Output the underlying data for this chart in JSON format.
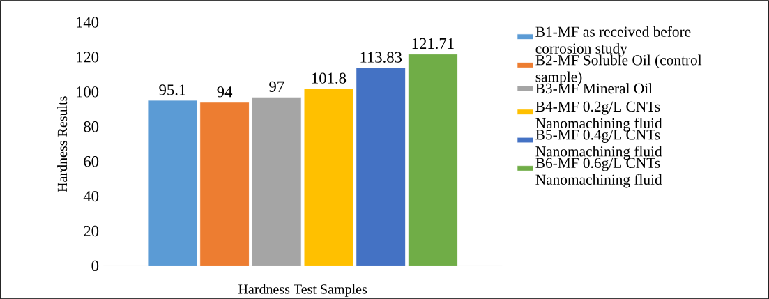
{
  "chart_data": {
    "type": "bar",
    "xlabel": "Hardness Test Samples",
    "ylabel": "Hardness Results",
    "categories": [
      null
    ],
    "ylim": [
      0,
      140
    ],
    "yticks": [
      0,
      20,
      40,
      60,
      80,
      100,
      120,
      140
    ],
    "legend": "right",
    "data_labels": true,
    "series": [
      {
        "name": "B1-MF as received before corrosion study",
        "color": "#5b9bd5",
        "values": [
          95.1
        ]
      },
      {
        "name": "B2-MF Soluble Oil (control sample)",
        "color": "#ed7d31",
        "values": [
          94
        ]
      },
      {
        "name": "B3-MF Mineral Oil",
        "color": "#a5a5a5",
        "values": [
          97
        ]
      },
      {
        "name": "B4-MF 0.2g/L CNTs Nanomachining fluid",
        "color": "#ffc000",
        "values": [
          101.8
        ]
      },
      {
        "name": "B5-MF 0.4g/L CNTs Nanomachining fluid",
        "color": "#4472c4",
        "values": [
          113.83
        ]
      },
      {
        "name": "B6-MF 0.6g/L CNTs Nanomachining fluid",
        "color": "#70ad47",
        "values": [
          121.71
        ]
      }
    ]
  }
}
